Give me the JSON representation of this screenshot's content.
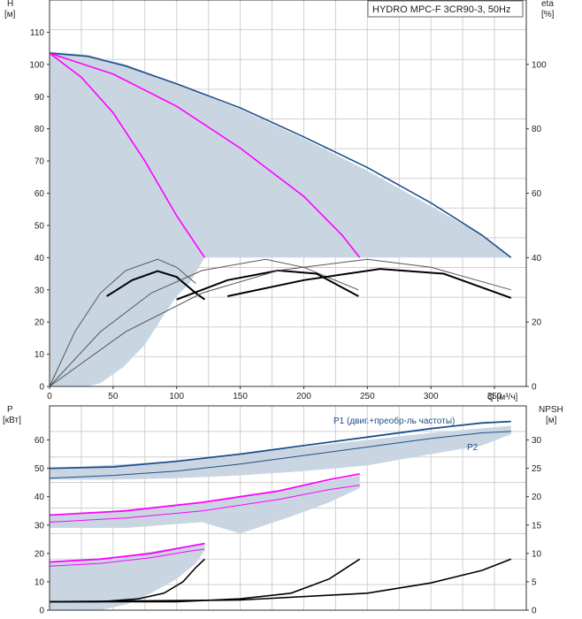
{
  "chart_data": [
    {
      "type": "line",
      "title": "HYDRO MPC-F 3CR90-3, 50Hz",
      "ylabel": "H",
      "yunit": "[м]",
      "y2label": "eta",
      "y2unit": "[%]",
      "xlabel": "Q [м³/ч]",
      "xlim": [
        0,
        375
      ],
      "ylim": [
        0,
        120
      ],
      "y2lim": [
        0,
        120
      ],
      "xticks": [
        "0",
        "50",
        "100",
        "150",
        "200",
        "250",
        "300",
        "350"
      ],
      "yticks": [
        "0",
        "10",
        "20",
        "30",
        "40",
        "50",
        "60",
        "70",
        "80",
        "90",
        "100",
        "110"
      ],
      "y2ticks": [
        "0",
        "20",
        "40",
        "60",
        "80",
        "100"
      ],
      "grid": true,
      "colors": {
        "envelope": "#c9d6e2",
        "max_curve": "#1f4e8c",
        "reduced_speed": "#ff00ff",
        "efficiency": "#000000"
      },
      "envelope": [
        [
          0,
          104
        ],
        [
          30,
          103
        ],
        [
          60,
          100
        ],
        [
          100,
          94
        ],
        [
          150,
          86
        ],
        [
          200,
          77
        ],
        [
          250,
          67
        ],
        [
          300,
          56
        ],
        [
          340,
          47
        ],
        [
          363,
          40
        ],
        [
          122,
          40
        ],
        [
          110,
          32
        ],
        [
          100,
          28
        ],
        [
          88,
          21
        ],
        [
          75,
          13
        ],
        [
          58,
          6
        ],
        [
          40,
          1
        ],
        [
          30,
          0
        ],
        [
          0,
          0
        ]
      ],
      "series": [
        {
          "id": "head-max",
          "color": "#1f4e8c",
          "points": [
            [
              0,
              103.5
            ],
            [
              30,
              102.5
            ],
            [
              60,
              99.5
            ],
            [
              100,
              94
            ],
            [
              150,
              86.5
            ],
            [
              200,
              77.5
            ],
            [
              250,
              68
            ],
            [
              300,
              57
            ],
            [
              340,
              47
            ],
            [
              363,
              40
            ]
          ]
        },
        {
          "id": "head-1pump-min",
          "color": "#ff00ff",
          "points": [
            [
              0,
              103.5
            ],
            [
              25,
              96
            ],
            [
              50,
              85
            ],
            [
              75,
              70
            ],
            [
              100,
              53
            ],
            [
              122,
              40
            ]
          ]
        },
        {
          "id": "head-2pump-min",
          "color": "#ff00ff",
          "points": [
            [
              0,
              103.5
            ],
            [
              50,
              97
            ],
            [
              100,
              87
            ],
            [
              150,
              74
            ],
            [
              200,
              59
            ],
            [
              230,
              47
            ],
            [
              244,
              40
            ]
          ]
        },
        {
          "id": "eta-1-thin",
          "color": "#555555",
          "points": [
            [
              0,
              0
            ],
            [
              20,
              17
            ],
            [
              40,
              29
            ],
            [
              60,
              36
            ],
            [
              85,
              39.5
            ],
            [
              100,
              37
            ],
            [
              115,
              32
            ]
          ]
        },
        {
          "id": "eta-1-bold",
          "color": "#000000",
          "points": [
            [
              45,
              28
            ],
            [
              65,
              33
            ],
            [
              85,
              35.8
            ],
            [
              100,
              34
            ],
            [
              115,
              29
            ],
            [
              122,
              27
            ]
          ]
        },
        {
          "id": "eta-2-thin",
          "color": "#555555",
          "points": [
            [
              0,
              0
            ],
            [
              40,
              17
            ],
            [
              80,
              29
            ],
            [
              120,
              36
            ],
            [
              170,
              39.5
            ],
            [
              200,
              37
            ],
            [
              243,
              30
            ]
          ]
        },
        {
          "id": "eta-2-bold",
          "color": "#000000",
          "points": [
            [
              100,
              27
            ],
            [
              140,
              33
            ],
            [
              180,
              36
            ],
            [
              210,
              35
            ],
            [
              243,
              28
            ]
          ]
        },
        {
          "id": "eta-3-thin",
          "color": "#555555",
          "points": [
            [
              0,
              0
            ],
            [
              60,
              17
            ],
            [
              120,
              29
            ],
            [
              180,
              36
            ],
            [
              250,
              39.5
            ],
            [
              300,
              37
            ],
            [
              363,
              30
            ]
          ]
        },
        {
          "id": "eta-3-bold",
          "color": "#000000",
          "points": [
            [
              140,
              28
            ],
            [
              200,
              33
            ],
            [
              260,
              36.5
            ],
            [
              310,
              35
            ],
            [
              363,
              27.5
            ]
          ]
        }
      ]
    },
    {
      "type": "line",
      "ylabel": "P",
      "yunit": "[кВт]",
      "y2label": "NPSH",
      "y2unit": "[м]",
      "xlim": [
        0,
        375
      ],
      "ylim": [
        0,
        72
      ],
      "y2lim": [
        0,
        36
      ],
      "yticks": [
        "0",
        "10",
        "20",
        "30",
        "40",
        "50",
        "60"
      ],
      "y2ticks": [
        "0",
        "5",
        "10",
        "15",
        "20",
        "25",
        "30"
      ],
      "grid": true,
      "annotations": [
        "P1 (двиг.+преобр-ль частоты)",
        "P2"
      ],
      "bands": [
        {
          "points": [
            [
              0,
              50
            ],
            [
              100,
              52.5
            ],
            [
              200,
              57.5
            ],
            [
              300,
              62.5
            ],
            [
              363,
              65
            ],
            [
              363,
              62
            ],
            [
              340,
              58
            ],
            [
              300,
              55
            ],
            [
              250,
              51
            ],
            [
              200,
              49
            ],
            [
              150,
              47.5
            ],
            [
              100,
              46.5
            ],
            [
              50,
              46
            ],
            [
              0,
              46
            ]
          ]
        },
        {
          "points": [
            [
              0,
              33.5
            ],
            [
              60,
              35
            ],
            [
              120,
              38
            ],
            [
              180,
              42
            ],
            [
              244,
              47.5
            ],
            [
              244,
              43
            ],
            [
              220,
              38
            ],
            [
              190,
              33
            ],
            [
              150,
              27
            ],
            [
              120,
              31
            ],
            [
              60,
              29
            ],
            [
              0,
              29
            ]
          ]
        },
        {
          "points": [
            [
              0,
              17
            ],
            [
              50,
              18.5
            ],
            [
              100,
              22
            ],
            [
              122,
              23.5
            ],
            [
              122,
              21
            ],
            [
              115,
              16.5
            ],
            [
              100,
              11
            ],
            [
              80,
              6
            ],
            [
              60,
              2
            ],
            [
              40,
              0
            ],
            [
              0,
              0
            ]
          ]
        }
      ],
      "series": [
        {
          "id": "p1-3",
          "color": "#1f4e8c",
          "points": [
            [
              0,
              50
            ],
            [
              50,
              50.5
            ],
            [
              100,
              52.5
            ],
            [
              150,
              55
            ],
            [
              200,
              58
            ],
            [
              250,
              61
            ],
            [
              300,
              64
            ],
            [
              340,
              66
            ],
            [
              363,
              66.5
            ]
          ]
        },
        {
          "id": "p2-3",
          "color": "#1f4e8c",
          "points": [
            [
              0,
              46.5
            ],
            [
              50,
              47.5
            ],
            [
              100,
              49
            ],
            [
              150,
              51.5
            ],
            [
              200,
              54.5
            ],
            [
              250,
              57.5
            ],
            [
              300,
              60.5
            ],
            [
              340,
              62.5
            ],
            [
              363,
              63
            ]
          ]
        },
        {
          "id": "p1-2",
          "color": "#ff00ff",
          "points": [
            [
              0,
              33.5
            ],
            [
              60,
              35
            ],
            [
              120,
              38
            ],
            [
              180,
              42
            ],
            [
              220,
              46
            ],
            [
              244,
              48
            ]
          ]
        },
        {
          "id": "p2-2",
          "color": "#ff00ff",
          "points": [
            [
              0,
              31
            ],
            [
              60,
              32.5
            ],
            [
              120,
              35
            ],
            [
              180,
              39
            ],
            [
              220,
              42.5
            ],
            [
              244,
              44
            ]
          ]
        },
        {
          "id": "p1-1",
          "color": "#ff00ff",
          "points": [
            [
              0,
              17
            ],
            [
              40,
              18
            ],
            [
              80,
              20
            ],
            [
              110,
              22.5
            ],
            [
              122,
              23.5
            ]
          ]
        },
        {
          "id": "p2-1",
          "color": "#ff00ff",
          "points": [
            [
              0,
              15.5
            ],
            [
              40,
              16.5
            ],
            [
              80,
              18.5
            ],
            [
              110,
              20.8
            ],
            [
              122,
              21.5
            ]
          ]
        },
        {
          "id": "npsh-1",
          "color": "#000000",
          "y_axis": "right",
          "points": [
            [
              0,
              1.5
            ],
            [
              40,
              1.5
            ],
            [
              70,
              2
            ],
            [
              90,
              3
            ],
            [
              105,
              5
            ],
            [
              115,
              7.5
            ],
            [
              122,
              9
            ]
          ]
        },
        {
          "id": "npsh-2",
          "color": "#000000",
          "y_axis": "right",
          "points": [
            [
              0,
              1.5
            ],
            [
              100,
              1.5
            ],
            [
              150,
              2
            ],
            [
              190,
              3
            ],
            [
              220,
              5.5
            ],
            [
              244,
              9
            ]
          ]
        },
        {
          "id": "npsh-3",
          "color": "#000000",
          "y_axis": "right",
          "points": [
            [
              0,
              1.5
            ],
            [
              150,
              1.8
            ],
            [
              250,
              3
            ],
            [
              300,
              4.8
            ],
            [
              340,
              7
            ],
            [
              363,
              9
            ]
          ]
        }
      ]
    }
  ]
}
